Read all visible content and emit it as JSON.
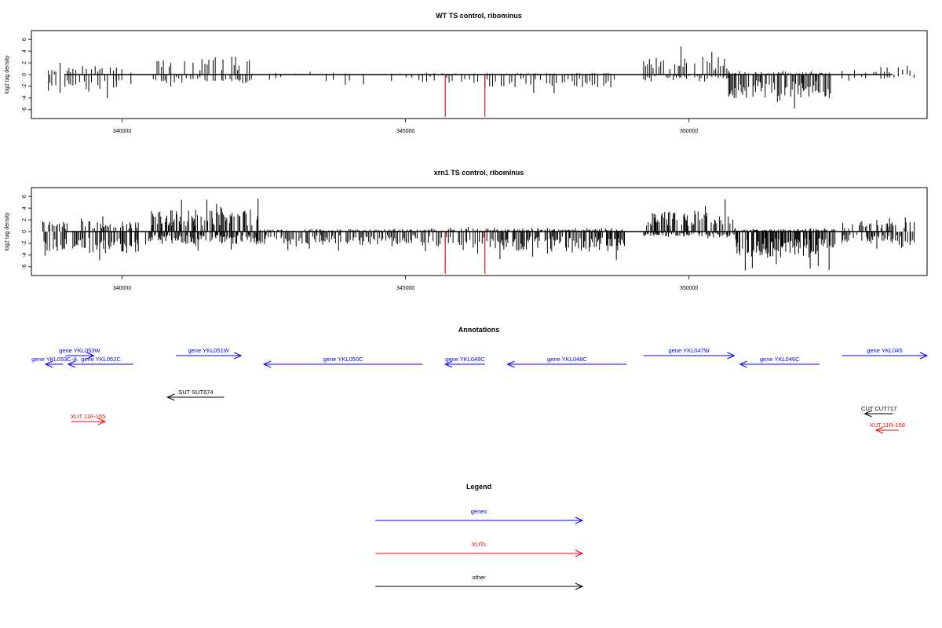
{
  "chart_data": [
    {
      "type": "bar",
      "title": "WT TS control, ribominus",
      "ylabel": "log2 tag density",
      "xlabel": "",
      "xlim": [
        338400,
        354200
      ],
      "ylim": [
        -7.5,
        7.5
      ],
      "xticks": [
        340000,
        345000,
        350000
      ],
      "xtick_labels": [
        "340000",
        "345000",
        "350000"
      ],
      "yticks": [
        -6,
        -4,
        -2,
        0,
        2,
        4,
        6
      ],
      "ytick_labels": [
        "-6",
        "-4",
        "-2",
        "0",
        "2",
        "4",
        "6"
      ],
      "bar_color": "#000000",
      "highlight_color": "#e00000",
      "regions": [
        {
          "start": 338700,
          "end": 339900,
          "plus": 1.5,
          "minus": -3.5,
          "step": 40
        },
        {
          "start": 339900,
          "end": 340200,
          "plus": 1.2,
          "minus": -2.5,
          "step": 60
        },
        {
          "start": 340550,
          "end": 342300,
          "plus": 3.0,
          "minus": -1.5,
          "step": 35
        },
        {
          "start": 342600,
          "end": 343500,
          "plus": 0.3,
          "minus": -1.5,
          "step": 90
        },
        {
          "start": 343600,
          "end": 345300,
          "plus": 0.2,
          "minus": -1.2,
          "step": 110
        },
        {
          "start": 345300,
          "end": 346300,
          "plus": 0.3,
          "minus": -1.5,
          "step": 60
        },
        {
          "start": 346400,
          "end": 348700,
          "plus": 0.3,
          "minus": -2.2,
          "step": 45
        },
        {
          "start": 349200,
          "end": 350700,
          "plus": 3.0,
          "minus": -0.8,
          "step": 35
        },
        {
          "start": 350700,
          "end": 352500,
          "plus": 0.4,
          "minus": -4.0,
          "step": 20
        },
        {
          "start": 352700,
          "end": 353300,
          "plus": 1.0,
          "minus": -0.8,
          "step": 120
        },
        {
          "start": 353300,
          "end": 354000,
          "plus": 1.5,
          "minus": -0.7,
          "step": 60
        }
      ],
      "highlights": [
        {
          "x": 345700,
          "value": -7.2
        },
        {
          "x": 346400,
          "value": -7.2
        }
      ]
    },
    {
      "type": "bar",
      "title": "xrn1 TS control, ribominus",
      "ylabel": "log2 tag density",
      "xlabel": "",
      "xlim": [
        338400,
        354200
      ],
      "ylim": [
        -7.5,
        7.5
      ],
      "xticks": [
        340000,
        345000,
        350000
      ],
      "xtick_labels": [
        "340000",
        "345000",
        "350000"
      ],
      "yticks": [
        -6,
        -4,
        -2,
        0,
        2,
        4,
        6
      ],
      "ytick_labels": [
        "-6",
        "-4",
        "-2",
        "0",
        "2",
        "4",
        "6"
      ],
      "bar_color": "#000000",
      "highlight_color": "#e00000",
      "regions": [
        {
          "start": 338600,
          "end": 340300,
          "plus": 1.8,
          "minus": -3.8,
          "step": 18
        },
        {
          "start": 340400,
          "end": 342400,
          "plus": 3.8,
          "minus": -2.2,
          "step": 14
        },
        {
          "start": 342400,
          "end": 345300,
          "plus": 0.4,
          "minus": -2.2,
          "step": 22
        },
        {
          "start": 345300,
          "end": 346500,
          "plus": 0.5,
          "minus": -2.8,
          "step": 25
        },
        {
          "start": 346500,
          "end": 348900,
          "plus": 0.4,
          "minus": -3.3,
          "step": 16
        },
        {
          "start": 349200,
          "end": 350800,
          "plus": 3.5,
          "minus": -0.8,
          "step": 16
        },
        {
          "start": 350800,
          "end": 352600,
          "plus": 0.4,
          "minus": -4.5,
          "step": 12
        },
        {
          "start": 352700,
          "end": 354000,
          "plus": 1.8,
          "minus": -2.0,
          "step": 20
        }
      ],
      "highlights": [
        {
          "x": 345700,
          "value": -7.2
        },
        {
          "x": 346400,
          "value": -7.2
        }
      ]
    }
  ],
  "annotations": {
    "title": "Annotations",
    "features": [
      {
        "label": "gene YKL053W",
        "kind": "gene",
        "start": 339500,
        "end": 339000,
        "row": 0,
        "strand": "+"
      },
      {
        "label": "gene YKL053C-A",
        "kind": "gene",
        "start": 338650,
        "end": 338960,
        "row": 1,
        "strand": "-"
      },
      {
        "label": "gene YKL052C",
        "kind": "gene",
        "start": 339050,
        "end": 340200,
        "row": 1,
        "strand": "-"
      },
      {
        "label": "gene YKL051W",
        "kind": "gene",
        "start": 340950,
        "end": 342100,
        "row": 0,
        "strand": "+"
      },
      {
        "label": "gene YKL050C",
        "kind": "gene",
        "start": 342500,
        "end": 345300,
        "row": 1,
        "strand": "-"
      },
      {
        "label": "gene YKL049C",
        "kind": "gene",
        "start": 345700,
        "end": 346400,
        "row": 1,
        "strand": "-"
      },
      {
        "label": "gene YKL048C",
        "kind": "gene",
        "start": 346800,
        "end": 348900,
        "row": 1,
        "strand": "-"
      },
      {
        "label": "gene YKL047W",
        "kind": "gene",
        "start": 349200,
        "end": 350800,
        "row": 0,
        "strand": "+"
      },
      {
        "label": "gene YKL046C",
        "kind": "gene",
        "start": 350900,
        "end": 352300,
        "row": 1,
        "strand": "-"
      },
      {
        "label": "gene YKL045",
        "kind": "gene",
        "start": 352700,
        "end": 354200,
        "row": 0,
        "strand": "+"
      },
      {
        "label": "SUT SUT674",
        "kind": "other",
        "start": 340800,
        "end": 341800,
        "row": 2,
        "strand": "-"
      },
      {
        "label": "XUT 11F-155",
        "kind": "xut",
        "start": 339100,
        "end": 339700,
        "row": 3,
        "strand": "+"
      },
      {
        "label": "CUT CUT717",
        "kind": "other",
        "start": 353100,
        "end": 353600,
        "row": 4,
        "strand": "-"
      },
      {
        "label": "XUT 11R-158",
        "kind": "xut",
        "start": 353300,
        "end": 353700,
        "row": 5,
        "strand": "-"
      }
    ]
  },
  "legend": {
    "title": "Legend",
    "items": [
      {
        "label": "genes",
        "color": "#0000ff"
      },
      {
        "label": "XUTs",
        "color": "#ff0000"
      },
      {
        "label": "other",
        "color": "#000000"
      }
    ]
  },
  "colors": {
    "gene": "#0000ff",
    "xut": "#ff0000",
    "other": "#000000"
  }
}
